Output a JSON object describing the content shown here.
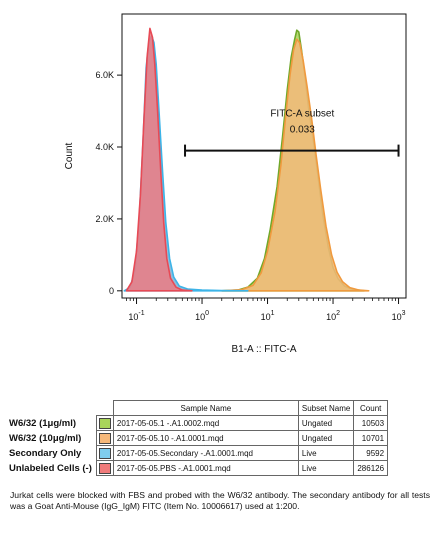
{
  "chart_data": {
    "type": "area",
    "xlabel": "B1-A :: FITC-A",
    "ylabel": "Count",
    "x_scale": "log",
    "xlim": [
      0.06,
      1300
    ],
    "ylim": [
      -200,
      7700
    ],
    "x_ticks": [
      {
        "value": 0.1,
        "base": "10",
        "exp": "-1"
      },
      {
        "value": 1,
        "base": "10",
        "exp": "0"
      },
      {
        "value": 10,
        "base": "10",
        "exp": "1"
      },
      {
        "value": 100,
        "base": "10",
        "exp": "2"
      },
      {
        "value": 1000,
        "base": "10",
        "exp": "3"
      }
    ],
    "y_ticks": [
      {
        "value": 0,
        "label": "0"
      },
      {
        "value": 2000,
        "label": "2.0K"
      },
      {
        "value": 4000,
        "label": "4.0K"
      },
      {
        "value": 6000,
        "label": "6.0K"
      }
    ],
    "gate": {
      "name": "FITC-A subset",
      "value": "0.033",
      "x_range": [
        0.55,
        1000
      ],
      "y": 3900
    },
    "series": [
      {
        "name": "W6/32 (1μg/ml)",
        "color": "#8dc63f",
        "fill": "#a9d45a",
        "stroke": "#6fa82a",
        "points": [
          [
            2,
            0
          ],
          [
            3.5,
            20
          ],
          [
            5,
            100
          ],
          [
            7,
            350
          ],
          [
            9,
            900
          ],
          [
            11,
            1700
          ],
          [
            14,
            2900
          ],
          [
            17,
            4300
          ],
          [
            20,
            5600
          ],
          [
            23,
            6500
          ],
          [
            26,
            7000
          ],
          [
            28,
            7250
          ],
          [
            30,
            7200
          ],
          [
            33,
            6700
          ],
          [
            37,
            6000
          ],
          [
            43,
            5000
          ],
          [
            50,
            4200
          ],
          [
            58,
            3300
          ],
          [
            70,
            2100
          ],
          [
            85,
            1200
          ],
          [
            100,
            650
          ],
          [
            120,
            330
          ],
          [
            150,
            130
          ],
          [
            200,
            40
          ],
          [
            300,
            0
          ]
        ]
      },
      {
        "name": "W6/32 (10μg/ml)",
        "color": "#f7a35c",
        "fill": "#f5b87a",
        "stroke": "#f09a3e",
        "points": [
          [
            2,
            0
          ],
          [
            4,
            30
          ],
          [
            6,
            150
          ],
          [
            8,
            500
          ],
          [
            10,
            1100
          ],
          [
            13,
            2200
          ],
          [
            16,
            3500
          ],
          [
            19,
            4900
          ],
          [
            22,
            6000
          ],
          [
            25,
            6700
          ],
          [
            28,
            7000
          ],
          [
            31,
            6900
          ],
          [
            35,
            6400
          ],
          [
            40,
            5700
          ],
          [
            47,
            4800
          ],
          [
            55,
            3800
          ],
          [
            65,
            2800
          ],
          [
            78,
            1800
          ],
          [
            95,
            1000
          ],
          [
            115,
            520
          ],
          [
            140,
            250
          ],
          [
            180,
            90
          ],
          [
            250,
            20
          ],
          [
            350,
            0
          ]
        ]
      },
      {
        "name": "Secondary Only",
        "color": "#5bc0e8",
        "fill": "#7fb2d4",
        "stroke": "#3cb4e8",
        "points": [
          [
            0.065,
            0
          ],
          [
            0.08,
            100
          ],
          [
            0.095,
            600
          ],
          [
            0.11,
            2000
          ],
          [
            0.125,
            4100
          ],
          [
            0.14,
            6200
          ],
          [
            0.155,
            6950
          ],
          [
            0.17,
            7100
          ],
          [
            0.185,
            6900
          ],
          [
            0.2,
            6300
          ],
          [
            0.22,
            5000
          ],
          [
            0.25,
            3300
          ],
          [
            0.28,
            1900
          ],
          [
            0.32,
            900
          ],
          [
            0.37,
            380
          ],
          [
            0.45,
            130
          ],
          [
            0.6,
            50
          ],
          [
            1,
            20
          ],
          [
            2,
            10
          ],
          [
            5,
            0
          ]
        ]
      },
      {
        "name": "Unlabeled Cells (-)",
        "color": "#f26d6d",
        "fill": "#ec7b82",
        "stroke": "#e84a55",
        "points": [
          [
            0.07,
            0
          ],
          [
            0.085,
            250
          ],
          [
            0.1,
            1100
          ],
          [
            0.115,
            2700
          ],
          [
            0.13,
            4800
          ],
          [
            0.145,
            6500
          ],
          [
            0.16,
            7300
          ],
          [
            0.175,
            7050
          ],
          [
            0.19,
            6300
          ],
          [
            0.21,
            5000
          ],
          [
            0.235,
            3300
          ],
          [
            0.26,
            1900
          ],
          [
            0.29,
            900
          ],
          [
            0.33,
            350
          ],
          [
            0.4,
            100
          ],
          [
            0.5,
            20
          ],
          [
            0.7,
            0
          ]
        ]
      }
    ]
  },
  "table": {
    "headers": [
      "Sample Name",
      "Subset Name",
      "Count"
    ],
    "rows": [
      {
        "label": "W6/32 (1μg/ml)",
        "color": "#a9d45a",
        "sample": "2017-05-05.1 -.A1.0002.mqd",
        "subset": "Ungated",
        "count": "10503"
      },
      {
        "label": "W6/32 (10μg/ml)",
        "color": "#f5b87a",
        "sample": "2017-05-05.10 -.A1.0001.mqd",
        "subset": "Ungated",
        "count": "10701"
      },
      {
        "label": "Secondary Only",
        "color": "#7fcdee",
        "sample": "2017-05-05.Secondary -.A1.0001.mqd",
        "subset": "Live",
        "count": "9592"
      },
      {
        "label": "Unlabeled Cells (-)",
        "color": "#f07b7b",
        "sample": "2017-05-05.PBS -.A1.0001.mqd",
        "subset": "Live",
        "count": "286126"
      }
    ]
  },
  "caption": "Jurkat cells were blocked with FBS and probed with the W6/32 antibody. The secondary antibody for all tests was a Goat Anti-Mouse (IgG_IgM) FITC (Item No. 10006617) used at 1:200."
}
